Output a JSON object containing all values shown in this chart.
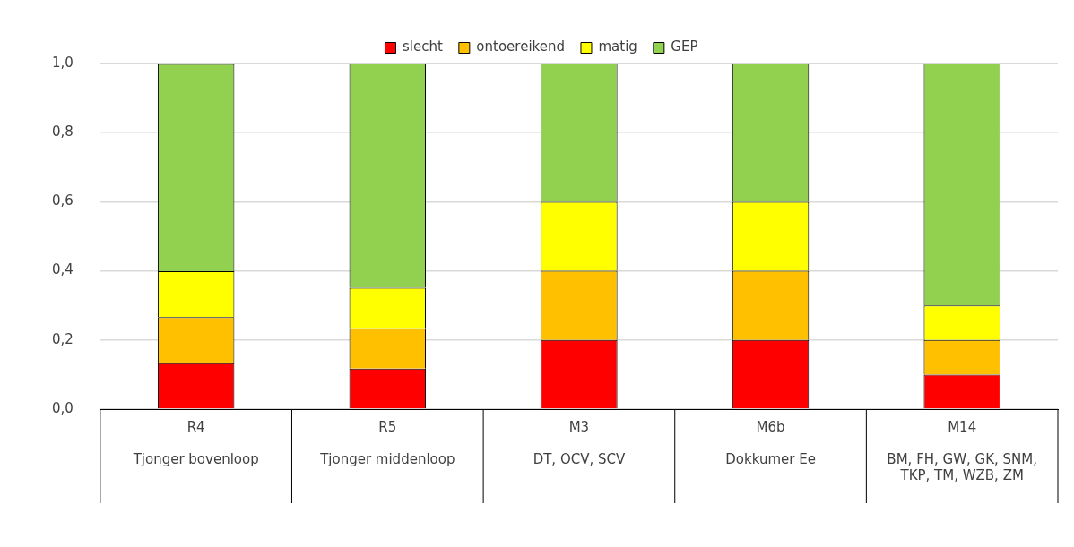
{
  "chart_data": {
    "type": "bar",
    "stacked": true,
    "categories": [
      "R4\nTjonger bovenloop",
      "R5\nTjonger middenloop",
      "M3\nDT, OCV, SCV",
      "M6b\nDokkumer Ee",
      "M14\nBM, FH, GW, GK, SNM, TKP, TM, WZB, ZM"
    ],
    "series": [
      {
        "name": "slecht",
        "color": "#ff0000",
        "values": [
          0.133,
          0.117,
          0.2,
          0.2,
          0.1
        ]
      },
      {
        "name": "ontoereikend",
        "color": "#ffc000",
        "values": [
          0.133,
          0.117,
          0.2,
          0.2,
          0.1
        ]
      },
      {
        "name": "matig",
        "color": "#ffff00",
        "values": [
          0.133,
          0.117,
          0.2,
          0.2,
          0.1
        ]
      },
      {
        "name": "GEP",
        "color": "#92d050",
        "values": [
          0.6,
          0.65,
          0.4,
          0.4,
          0.7
        ]
      }
    ],
    "ylim": [
      0,
      1
    ],
    "yticks": [
      {
        "value": 0,
        "label": "0,0"
      },
      {
        "value": 0.2,
        "label": "0,2"
      },
      {
        "value": 0.4,
        "label": "0,4"
      },
      {
        "value": 0.6,
        "label": "0,6"
      },
      {
        "value": 0.8,
        "label": "0,8"
      },
      {
        "value": 1,
        "label": "1,0"
      }
    ],
    "grid": "y",
    "legend": "top"
  }
}
